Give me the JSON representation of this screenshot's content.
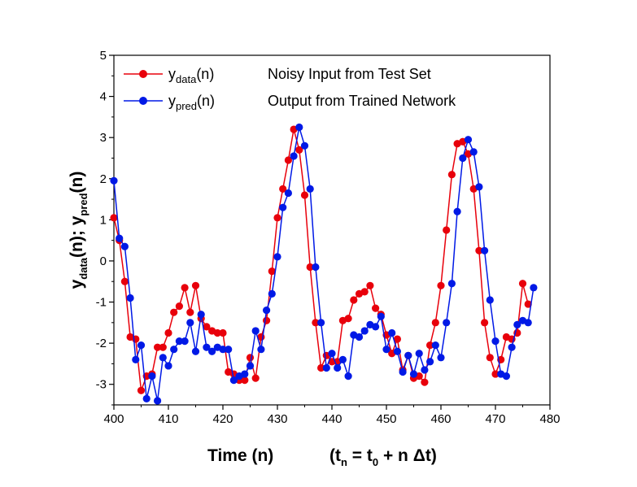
{
  "chart_data": {
    "type": "line",
    "title": "",
    "xlabel": {
      "main": "Time  (n)",
      "formula_t": "t",
      "formula_n": "n",
      "formula_eq": " = t",
      "formula_zero": "0",
      "formula_rest": " + n Δt"
    },
    "ylabel": {
      "y1": "y",
      "sub1": "data",
      "mid": "(n); y",
      "sub2": "pred",
      "end": "(n)"
    },
    "xlim": [
      400,
      480
    ],
    "ylim": [
      -3.5,
      5
    ],
    "xticks": [
      400,
      410,
      420,
      430,
      440,
      450,
      460,
      470,
      480
    ],
    "yticks": [
      -3,
      -2,
      -1,
      0,
      1,
      2,
      3,
      4,
      5
    ],
    "x_start": 400,
    "series": [
      {
        "name_base": "y",
        "name_sub": "data",
        "name_tail": "(n)",
        "description": "Noisy Input from Test Set",
        "color": "#e8000b",
        "values": [
          1.05,
          0.5,
          -0.5,
          -1.85,
          -1.9,
          -3.15,
          -2.8,
          -2.75,
          -2.1,
          -2.1,
          -1.75,
          -1.25,
          -1.1,
          -0.65,
          -1.25,
          -0.6,
          -1.4,
          -1.6,
          -1.7,
          -1.75,
          -1.75,
          -2.7,
          -2.75,
          -2.9,
          -2.9,
          -2.35,
          -2.85,
          -1.85,
          -1.45,
          -0.25,
          1.05,
          1.75,
          2.45,
          3.2,
          2.7,
          1.6,
          -0.15,
          -1.5,
          -2.6,
          -2.3,
          -2.45,
          -2.45,
          -1.45,
          -1.4,
          -0.95,
          -0.8,
          -0.75,
          -0.6,
          -1.15,
          -1.3,
          -1.8,
          -2.25,
          -1.9,
          -2.65,
          -2.3,
          -2.85,
          -2.8,
          -2.95,
          -2.05,
          -1.5,
          -0.6,
          0.75,
          2.1,
          2.85,
          2.9,
          2.6,
          1.75,
          0.25,
          -1.5,
          -2.35,
          -2.75,
          -2.4,
          -1.85,
          -1.9,
          -1.75,
          -0.55,
          -1.05
        ]
      },
      {
        "name_base": "y",
        "name_sub": "pred",
        "name_tail": "(n)",
        "description": "Output from Trained Network",
        "color": "#0019e6",
        "values": [
          1.95,
          0.55,
          0.35,
          -0.9,
          -2.4,
          -2.05,
          -3.35,
          -2.8,
          -3.4,
          -2.35,
          -2.55,
          -2.15,
          -1.95,
          -1.95,
          -1.5,
          -2.2,
          -1.3,
          -2.1,
          -2.2,
          -2.1,
          -2.15,
          -2.15,
          -2.9,
          -2.8,
          -2.75,
          -2.55,
          -1.7,
          -2.15,
          -1.2,
          -0.8,
          0.1,
          1.3,
          1.65,
          2.55,
          3.25,
          2.8,
          1.75,
          -0.15,
          -1.5,
          -2.6,
          -2.25,
          -2.6,
          -2.4,
          -2.8,
          -1.8,
          -1.85,
          -1.7,
          -1.55,
          -1.6,
          -1.35,
          -2.15,
          -1.75,
          -2.2,
          -2.7,
          -2.3,
          -2.75,
          -2.25,
          -2.65,
          -2.45,
          -2.05,
          -2.35,
          -1.5,
          -0.55,
          1.2,
          2.5,
          2.95,
          2.65,
          1.8,
          0.25,
          -0.95,
          -1.95,
          -2.75,
          -2.8,
          -2.1,
          -1.55,
          -1.45,
          -1.5,
          -0.65
        ]
      }
    ]
  }
}
